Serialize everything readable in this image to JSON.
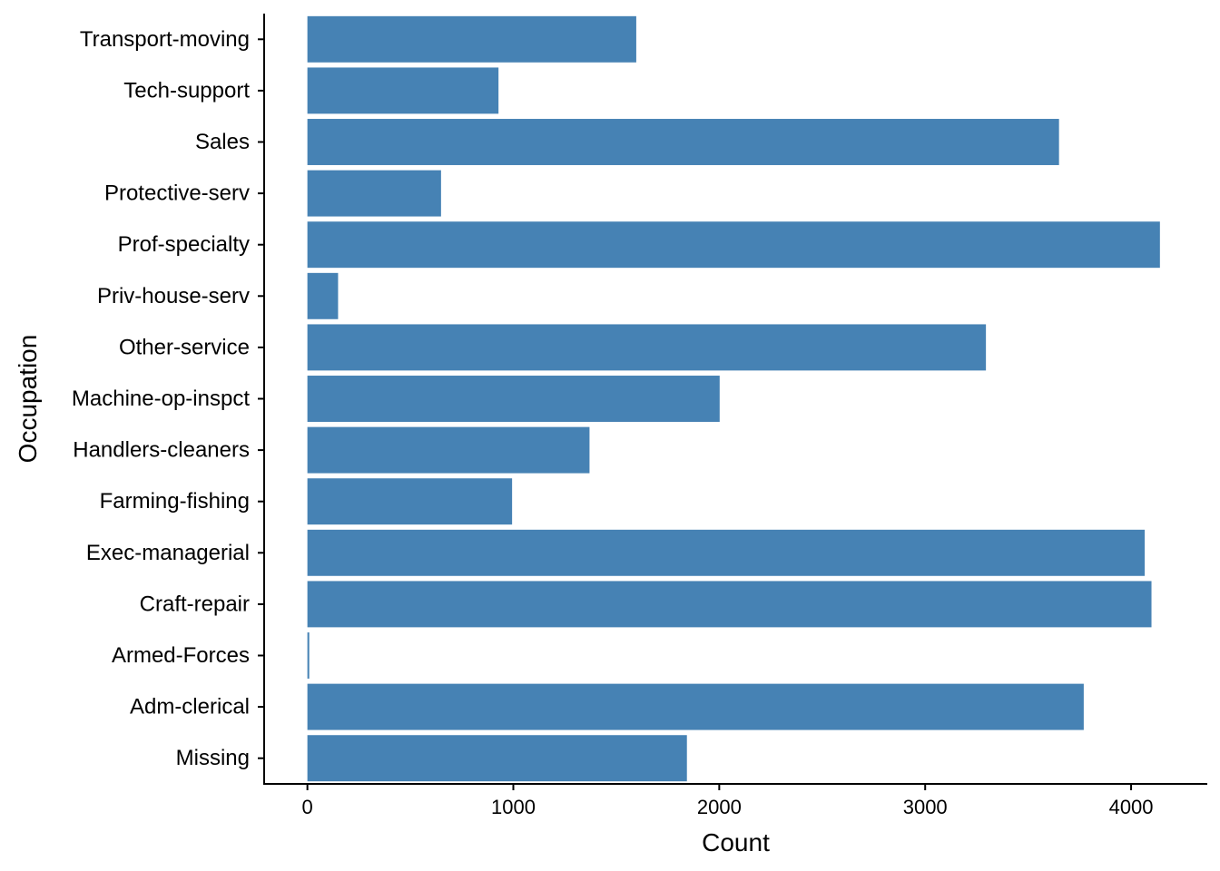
{
  "chart_data": {
    "type": "bar",
    "orientation": "horizontal",
    "xlabel": "Count",
    "ylabel": "Occupation",
    "categories": [
      "Missing",
      "Adm-clerical",
      "Armed-Forces",
      "Craft-repair",
      "Exec-managerial",
      "Farming-fishing",
      "Handlers-cleaners",
      "Machine-op-inspct",
      "Other-service",
      "Priv-house-serv",
      "Prof-specialty",
      "Protective-serv",
      "Sales",
      "Tech-support",
      "Transport-moving"
    ],
    "values": [
      1843,
      3770,
      9,
      4099,
      4066,
      994,
      1370,
      2002,
      3295,
      149,
      4140,
      649,
      3650,
      928,
      1597
    ],
    "xlim": [
      -210,
      4370
    ],
    "xticks": [
      0,
      1000,
      2000,
      3000,
      4000
    ],
    "xtick_labels": [
      "0",
      "1000",
      "2000",
      "3000",
      "4000"
    ],
    "grid": false,
    "legend": "none",
    "bar_color": "#4682B4"
  }
}
